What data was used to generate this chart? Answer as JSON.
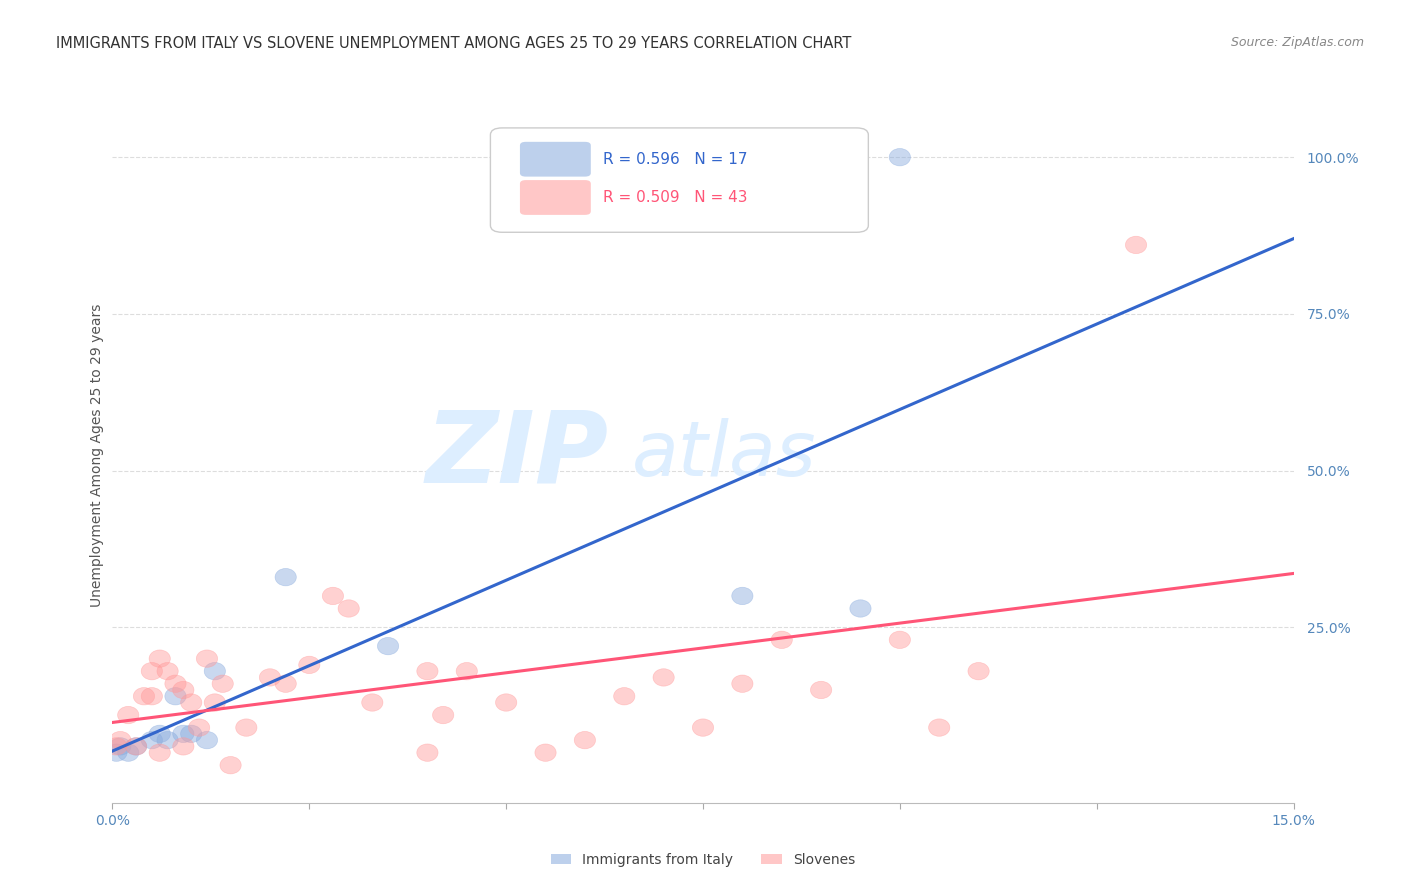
{
  "title": "IMMIGRANTS FROM ITALY VS SLOVENE UNEMPLOYMENT AMONG AGES 25 TO 29 YEARS CORRELATION CHART",
  "source": "Source: ZipAtlas.com",
  "ylabel": "Unemployment Among Ages 25 to 29 years",
  "x_min": 0.0,
  "x_max": 0.15,
  "y_min": -0.03,
  "y_max": 1.08,
  "italy_R": 0.596,
  "italy_N": 17,
  "slovene_R": 0.509,
  "slovene_N": 43,
  "italy_color": "#88AADD",
  "slovene_color": "#FF9999",
  "line_italy_color": "#3366CC",
  "line_slovene_color": "#FF5577",
  "watermark_color": "#DDEEFF",
  "italy_scatter_x": [
    0.0005,
    0.001,
    0.002,
    0.003,
    0.005,
    0.006,
    0.007,
    0.008,
    0.009,
    0.01,
    0.012,
    0.013,
    0.022,
    0.035,
    0.08,
    0.095,
    0.1
  ],
  "italy_scatter_y": [
    0.05,
    0.06,
    0.05,
    0.06,
    0.07,
    0.08,
    0.07,
    0.14,
    0.08,
    0.08,
    0.07,
    0.18,
    0.33,
    0.22,
    0.3,
    0.28,
    1.0
  ],
  "slovene_scatter_x": [
    0.0005,
    0.001,
    0.002,
    0.003,
    0.004,
    0.005,
    0.005,
    0.006,
    0.006,
    0.007,
    0.008,
    0.009,
    0.009,
    0.01,
    0.011,
    0.012,
    0.013,
    0.014,
    0.015,
    0.017,
    0.02,
    0.022,
    0.025,
    0.028,
    0.03,
    0.033,
    0.04,
    0.04,
    0.042,
    0.045,
    0.05,
    0.055,
    0.06,
    0.065,
    0.07,
    0.075,
    0.08,
    0.085,
    0.09,
    0.1,
    0.105,
    0.11,
    0.13
  ],
  "slovene_scatter_y": [
    0.06,
    0.07,
    0.11,
    0.06,
    0.14,
    0.14,
    0.18,
    0.05,
    0.2,
    0.18,
    0.16,
    0.06,
    0.15,
    0.13,
    0.09,
    0.2,
    0.13,
    0.16,
    0.03,
    0.09,
    0.17,
    0.16,
    0.19,
    0.3,
    0.28,
    0.13,
    0.18,
    0.05,
    0.11,
    0.18,
    0.13,
    0.05,
    0.07,
    0.14,
    0.17,
    0.09,
    0.16,
    0.23,
    0.15,
    0.23,
    0.09,
    0.18,
    0.86
  ],
  "grid_color": "#DDDDDD",
  "background_color": "#FFFFFF",
  "title_color": "#333333",
  "tick_label_color": "#5588BB"
}
